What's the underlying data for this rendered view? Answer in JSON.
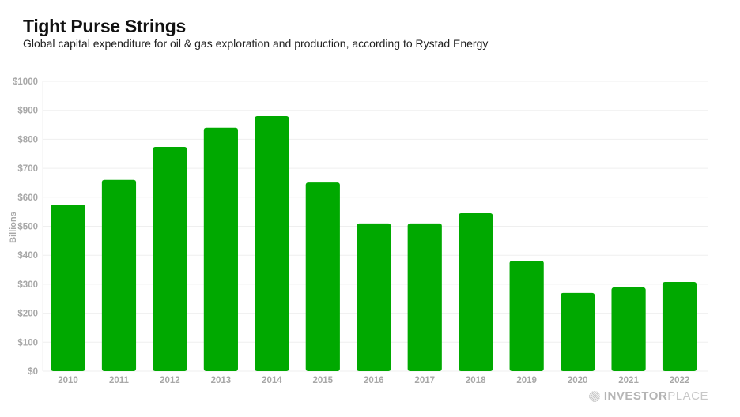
{
  "chart_data": {
    "type": "bar",
    "title": "Tight Purse Strings",
    "subtitle": "Global capital expenditure for oil & gas exploration and production, according to Rystad Energy",
    "xlabel": "",
    "ylabel": "Billions",
    "categories": [
      "2010",
      "2011",
      "2012",
      "2013",
      "2014",
      "2015",
      "2016",
      "2017",
      "2018",
      "2019",
      "2020",
      "2021",
      "2022"
    ],
    "values": [
      575,
      660,
      774,
      840,
      880,
      651,
      510,
      510,
      545,
      381,
      270,
      289,
      308
    ],
    "ylim": [
      0,
      1000
    ],
    "yticks": [
      0,
      100,
      200,
      300,
      400,
      500,
      600,
      700,
      800,
      900,
      1000
    ],
    "ytick_labels": [
      "$0",
      "$100",
      "$200",
      "$300",
      "$400",
      "$500",
      "$600",
      "$700",
      "$800",
      "$900",
      "$1000"
    ],
    "grid": true,
    "bar_color": "#00a900",
    "legend": "none"
  },
  "brand": {
    "bold": "INVESTOR",
    "light": "PLACE"
  }
}
